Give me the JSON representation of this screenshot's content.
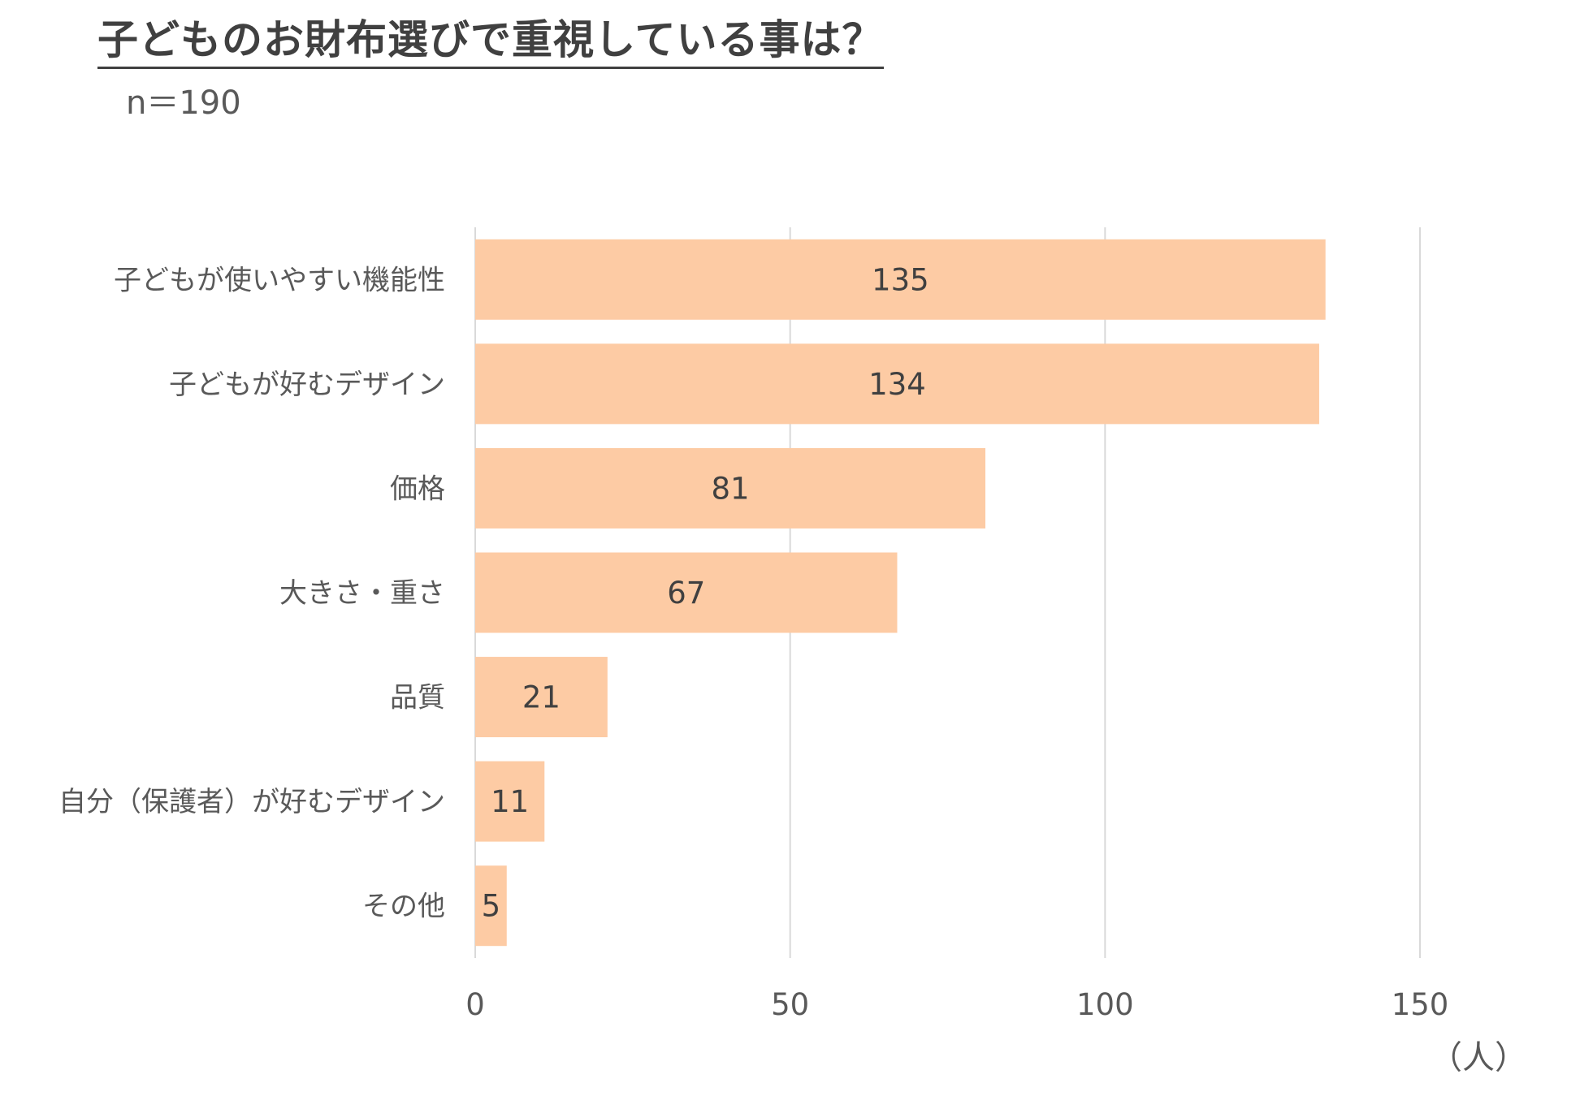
{
  "header": {
    "title": "子どものお財布選びで重視している事は？",
    "sample_size": "n＝190"
  },
  "chart_data": {
    "type": "bar",
    "orientation": "horizontal",
    "title": "子どものお財布選びで重視している事は？",
    "subtitle": "n＝190",
    "categories": [
      "子どもが使いやすい機能性",
      "子どもが好むデザイン",
      "価格",
      "大きさ・重さ",
      "品質",
      "自分（保護者）が好むデザイン",
      "その他"
    ],
    "values": [
      135,
      134,
      81,
      67,
      21,
      11,
      5
    ],
    "xlim": [
      0,
      150
    ],
    "xticks": [
      0,
      50,
      100,
      150
    ],
    "xlabel": "（人）",
    "ylabel": "",
    "grid": "vertical",
    "legend": "none",
    "data_labels": true,
    "colors": {
      "bar": "#FDCBA4",
      "grid": "#D9D9D9",
      "text": "#595959",
      "label": "#404040"
    }
  }
}
